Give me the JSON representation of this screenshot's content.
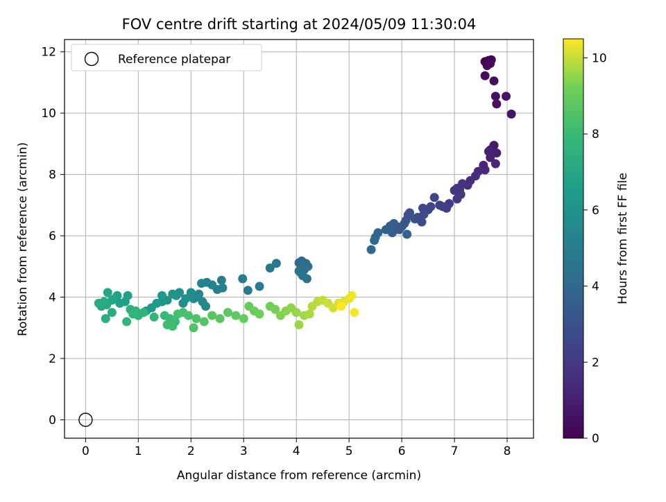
{
  "chart_data": {
    "type": "scatter",
    "title": "FOV centre drift starting at 2024/05/09 11:30:04",
    "xlabel": "Angular distance from reference (arcmin)",
    "ylabel": "Rotation from reference (arcmin)",
    "xlim": [
      -0.4,
      8.5
    ],
    "ylim": [
      -0.6,
      12.4
    ],
    "xticks": [
      0,
      1,
      2,
      3,
      4,
      5,
      6,
      7,
      8
    ],
    "yticks": [
      0,
      2,
      4,
      6,
      8,
      10,
      12
    ],
    "grid": true,
    "legend": {
      "location": "upper-left",
      "entries": [
        "Reference platepar"
      ]
    },
    "reference_point": {
      "x": 0,
      "y": 0,
      "marker": "open-circle"
    },
    "colorbar": {
      "label": "Hours from first FF file",
      "colormap": "viridis",
      "range": [
        0,
        10.5
      ],
      "ticks": [
        0,
        2,
        4,
        6,
        8,
        10
      ]
    },
    "series": [
      {
        "points": [
          [
            7.58,
            11.68
          ],
          [
            7.65,
            11.72
          ],
          [
            7.7,
            11.74
          ],
          [
            7.62,
            11.55
          ],
          [
            7.68,
            11.62
          ],
          [
            7.58,
            11.22
          ],
          [
            7.75,
            11.05
          ],
          [
            7.78,
            10.55
          ],
          [
            7.8,
            10.3
          ],
          [
            7.98,
            10.55
          ],
          [
            8.08,
            9.97
          ],
          [
            7.75,
            8.95
          ],
          [
            7.72,
            8.85
          ],
          [
            7.68,
            8.8
          ],
          [
            7.7,
            8.7
          ],
          [
            7.8,
            8.7
          ],
          [
            7.65,
            8.75
          ],
          [
            7.68,
            8.55
          ],
          [
            7.78,
            8.35
          ],
          [
            7.55,
            8.3
          ],
          [
            7.58,
            8.15
          ],
          [
            7.45,
            8.1
          ],
          [
            7.4,
            7.95
          ],
          [
            7.3,
            7.8
          ],
          [
            7.25,
            7.65
          ],
          [
            7.15,
            7.7
          ],
          [
            7.1,
            7.5
          ],
          [
            7.05,
            7.55
          ],
          [
            7.0,
            7.48
          ],
          [
            7.12,
            7.35
          ],
          [
            7.05,
            7.2
          ],
          [
            6.9,
            7.05
          ],
          [
            6.85,
            6.9
          ],
          [
            6.78,
            6.95
          ],
          [
            6.72,
            7.0
          ],
          [
            6.62,
            7.25
          ],
          [
            6.55,
            6.95
          ],
          [
            6.5,
            6.85
          ],
          [
            6.4,
            6.9
          ],
          [
            6.42,
            6.7
          ],
          [
            6.38,
            6.45
          ],
          [
            6.3,
            6.6
          ],
          [
            6.25,
            6.55
          ],
          [
            6.15,
            6.75
          ],
          [
            6.12,
            6.68
          ],
          [
            6.08,
            6.5
          ],
          [
            6.05,
            6.4
          ],
          [
            6.0,
            6.3
          ],
          [
            5.95,
            6.2
          ],
          [
            5.9,
            6.3
          ],
          [
            5.85,
            6.4
          ],
          [
            5.82,
            6.1
          ],
          [
            5.78,
            6.32
          ],
          [
            5.7,
            6.2
          ],
          [
            6.1,
            6.05
          ],
          [
            5.55,
            6.1
          ],
          [
            5.5,
            5.95
          ],
          [
            5.48,
            5.85
          ],
          [
            5.42,
            5.55
          ],
          [
            4.05,
            5.12
          ],
          [
            4.1,
            5.18
          ],
          [
            4.18,
            5.1
          ],
          [
            4.22,
            5.0
          ],
          [
            4.15,
            4.9
          ],
          [
            4.08,
            4.8
          ],
          [
            4.12,
            4.7
          ],
          [
            4.05,
            4.85
          ],
          [
            4.2,
            4.6
          ],
          [
            3.62,
            5.1
          ],
          [
            3.5,
            4.95
          ],
          [
            3.3,
            4.35
          ],
          [
            3.08,
            4.22
          ],
          [
            2.98,
            4.6
          ],
          [
            2.58,
            4.55
          ],
          [
            2.6,
            4.3
          ],
          [
            2.5,
            4.25
          ],
          [
            2.4,
            4.4
          ],
          [
            2.3,
            4.48
          ],
          [
            2.2,
            4.45
          ],
          [
            2.15,
            4.1
          ],
          [
            2.1,
            4.0
          ],
          [
            2.05,
            3.95
          ],
          [
            2.22,
            3.85
          ],
          [
            2.28,
            3.7
          ],
          [
            2.0,
            4.15
          ],
          [
            1.9,
            3.95
          ],
          [
            1.85,
            3.8
          ],
          [
            1.78,
            4.15
          ],
          [
            1.72,
            4.05
          ],
          [
            1.65,
            4.1
          ],
          [
            1.55,
            3.9
          ],
          [
            1.45,
            3.85
          ],
          [
            1.45,
            4.05
          ],
          [
            1.35,
            3.8
          ],
          [
            1.25,
            3.65
          ],
          [
            1.15,
            3.55
          ],
          [
            0.8,
            4.05
          ],
          [
            0.75,
            3.85
          ],
          [
            0.65,
            3.8
          ],
          [
            0.6,
            4.05
          ],
          [
            0.55,
            3.95
          ],
          [
            0.5,
            3.9
          ],
          [
            0.42,
            4.15
          ],
          [
            0.4,
            3.75
          ],
          [
            0.35,
            3.85
          ],
          [
            0.3,
            3.7
          ],
          [
            0.25,
            3.8
          ],
          [
            0.5,
            3.5
          ],
          [
            0.38,
            3.3
          ],
          [
            0.85,
            3.6
          ],
          [
            0.95,
            3.55
          ],
          [
            1.1,
            3.5
          ],
          [
            1.0,
            3.4
          ],
          [
            0.9,
            3.45
          ],
          [
            0.78,
            3.2
          ],
          [
            1.3,
            3.35
          ],
          [
            1.5,
            3.4
          ],
          [
            1.6,
            3.3
          ],
          [
            1.7,
            3.2
          ],
          [
            1.55,
            3.1
          ],
          [
            1.65,
            3.05
          ],
          [
            1.75,
            3.45
          ],
          [
            1.85,
            3.5
          ],
          [
            1.95,
            3.4
          ],
          [
            2.1,
            3.3
          ],
          [
            2.05,
            3.0
          ],
          [
            2.25,
            3.2
          ],
          [
            2.4,
            3.4
          ],
          [
            2.55,
            3.3
          ],
          [
            2.7,
            3.5
          ],
          [
            2.85,
            3.4
          ],
          [
            3.0,
            3.3
          ],
          [
            3.1,
            3.7
          ],
          [
            3.2,
            3.55
          ],
          [
            3.3,
            3.45
          ],
          [
            3.5,
            3.7
          ],
          [
            3.6,
            3.6
          ],
          [
            3.7,
            3.4
          ],
          [
            3.8,
            3.55
          ],
          [
            3.9,
            3.65
          ],
          [
            4.0,
            3.5
          ],
          [
            4.05,
            3.1
          ],
          [
            4.15,
            3.4
          ],
          [
            4.25,
            3.45
          ],
          [
            4.3,
            3.7
          ],
          [
            4.4,
            3.85
          ],
          [
            4.5,
            3.9
          ],
          [
            4.6,
            3.8
          ],
          [
            4.7,
            3.65
          ],
          [
            4.8,
            3.8
          ],
          [
            4.9,
            3.85
          ],
          [
            5.0,
            3.95
          ],
          [
            5.05,
            4.05
          ],
          [
            5.1,
            3.5
          ],
          [
            4.85,
            3.7
          ]
        ]
      }
    ]
  }
}
